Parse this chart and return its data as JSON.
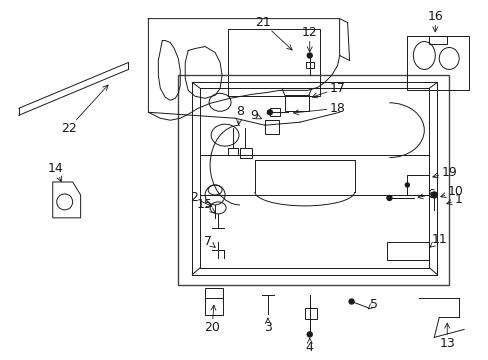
{
  "bg_color": "#ffffff",
  "fig_width": 4.89,
  "fig_height": 3.6,
  "dpi": 100,
  "line_color": "#1a1a1a",
  "lw": 0.7
}
